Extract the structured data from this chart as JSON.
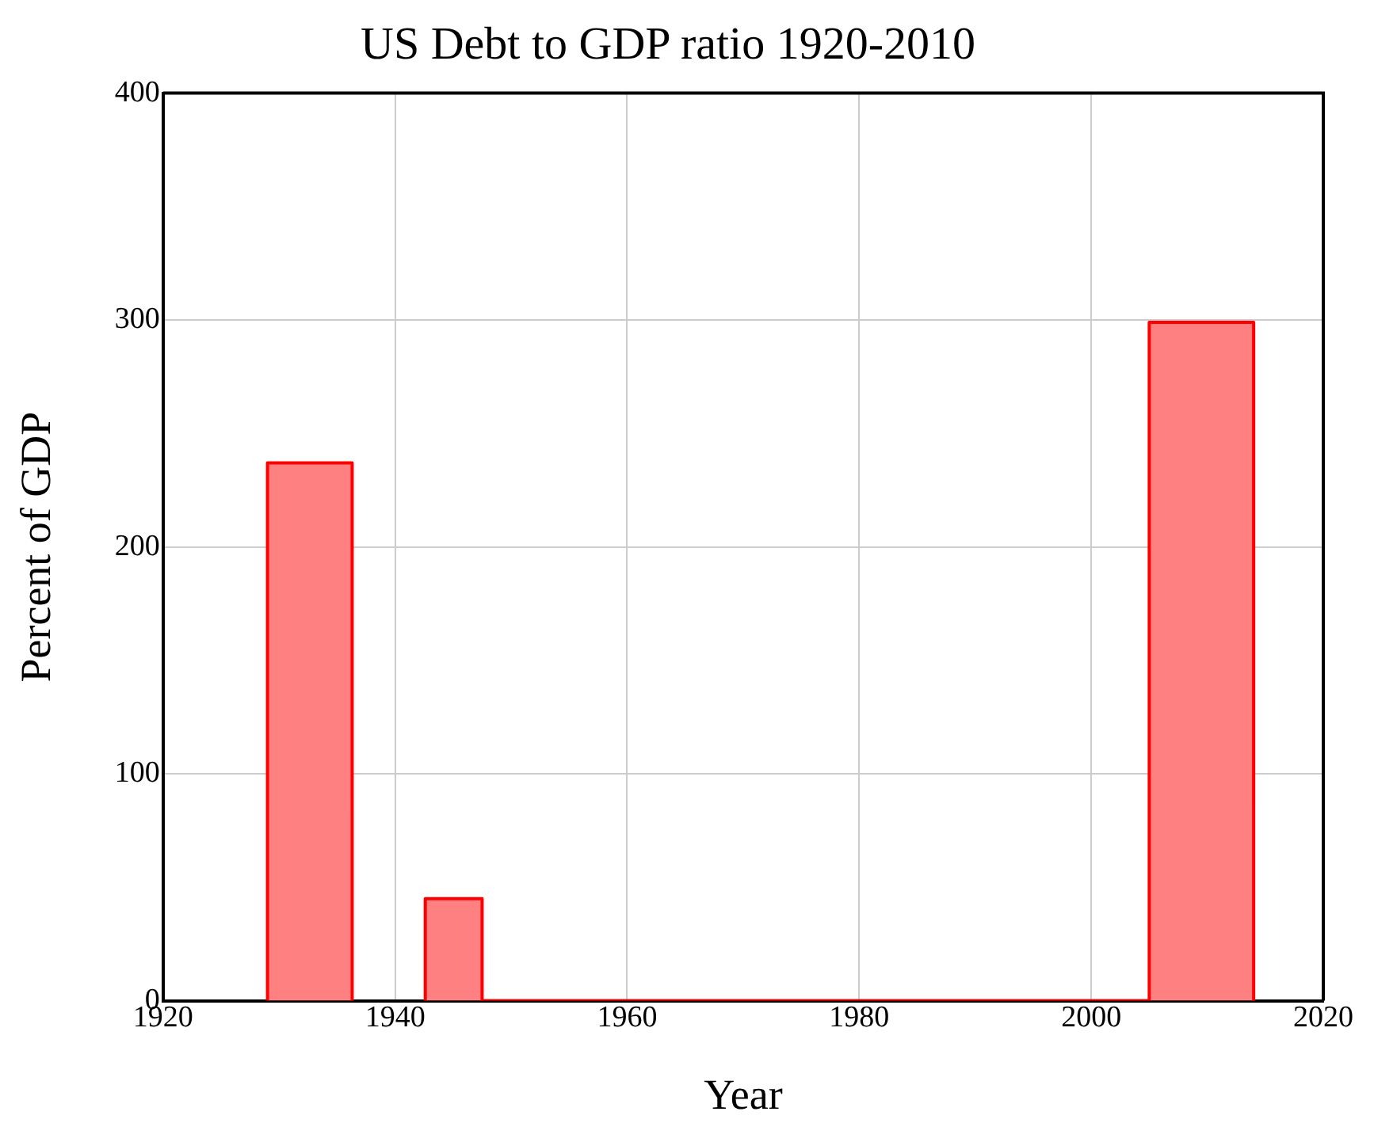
{
  "chart_data": {
    "type": "histogram",
    "title": "US Debt to GDP ratio 1920-2010",
    "xlabel": "Year",
    "ylabel": "Percent of GDP",
    "bins": [
      1929,
      1936.3,
      1942.6,
      1947.5,
      2005,
      2014
    ],
    "values": [
      237,
      null,
      45,
      0,
      299
    ],
    "color": "#ff8080",
    "xlim": [
      1920,
      2020
    ],
    "xticks": [
      1920,
      1940,
      1960,
      1980,
      2000,
      2020
    ],
    "ylim": [
      0,
      400
    ],
    "yticks": [
      0,
      100,
      200,
      300,
      400
    ],
    "grid": true
  }
}
